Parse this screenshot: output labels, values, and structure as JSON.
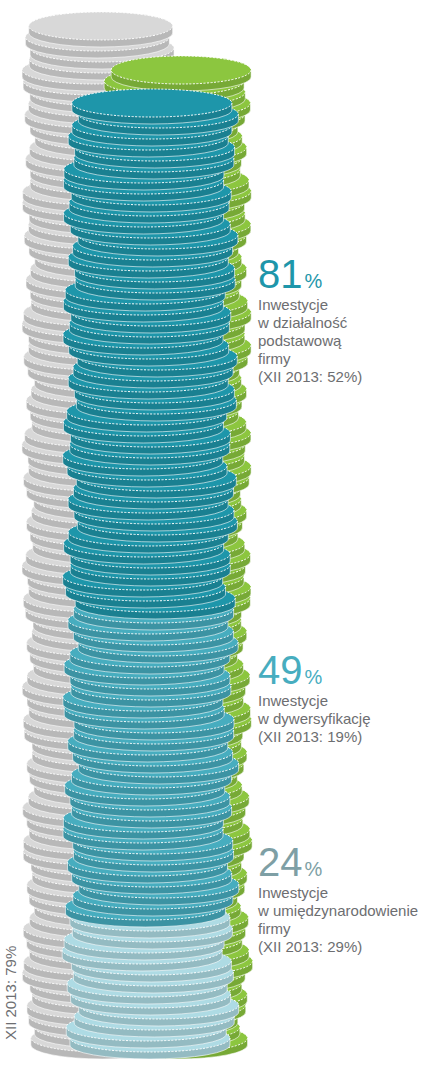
{
  "chart_data": {
    "type": "pictograph",
    "stacked": true,
    "data_labels": true,
    "tick_labels": false,
    "categories": [
      "Inwestycje w działalność podstawową firmy",
      "Inwestycje w dywersyfikację",
      "Inwestycje w umiędzynarodowienie firmy"
    ],
    "values": [
      81,
      49,
      24
    ],
    "value_labels": [
      "81%",
      "49%",
      "24%"
    ],
    "colors": [
      "#1e96aa",
      "#47adbf",
      "#aedbe4"
    ],
    "ylim": [
      0,
      154
    ],
    "annotations": [
      "(XII 2013: 52%)",
      "(XII 2013: 19%)",
      "(XII 2013: 29%)",
      "XII 2013: 79%"
    ]
  }
}
